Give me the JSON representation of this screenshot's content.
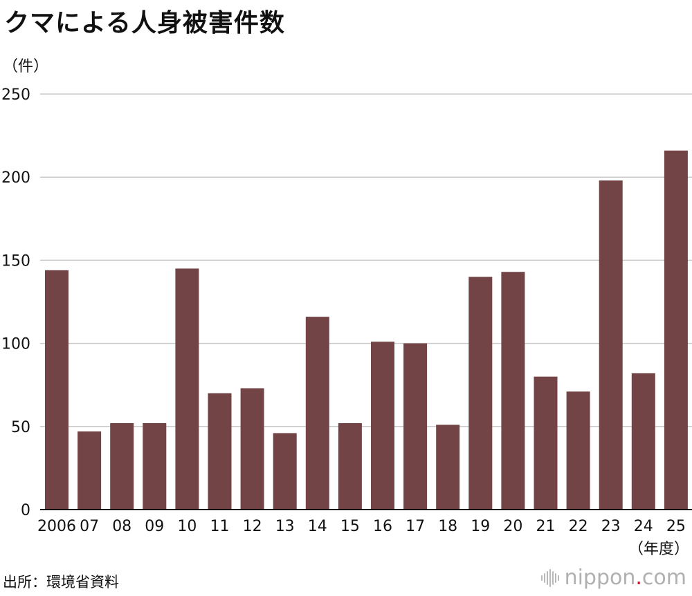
{
  "header": {
    "title": "クマによる人身被害件数"
  },
  "axis": {
    "y_unit": "（件）",
    "x_unit": "（年度）"
  },
  "footer": {
    "source": "出所：環境省資料",
    "brand_pre": "nippon",
    "brand_dot": ".",
    "brand_post": "com",
    "brand_icon": "nippon-logo-icon"
  },
  "chart_data": {
    "type": "bar",
    "title": "クマによる人身被害件数",
    "ylabel": "（件）",
    "xlabel": "（年度）",
    "categories": [
      "2006",
      "07",
      "08",
      "09",
      "10",
      "11",
      "12",
      "13",
      "14",
      "15",
      "16",
      "17",
      "18",
      "19",
      "20",
      "21",
      "22",
      "23",
      "24",
      "25"
    ],
    "values": [
      144,
      47,
      52,
      52,
      145,
      70,
      73,
      46,
      116,
      52,
      101,
      100,
      51,
      140,
      143,
      80,
      71,
      198,
      82,
      216
    ],
    "yticks": [
      0,
      50,
      100,
      150,
      200,
      250
    ],
    "ylim": [
      0,
      250
    ],
    "grid": true,
    "bar_color": "#734446",
    "grid_color": "#c8c8c8"
  }
}
